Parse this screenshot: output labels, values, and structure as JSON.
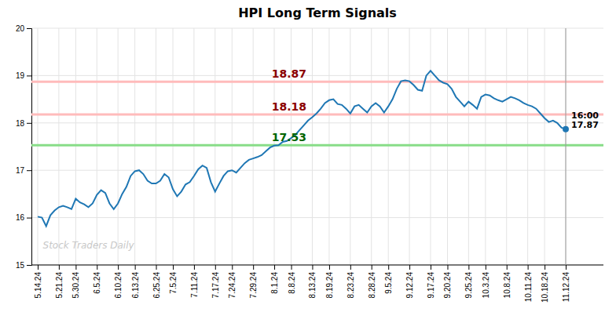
{
  "chart_data": {
    "type": "line",
    "title": "HPI Long Term Signals",
    "categories": [
      "5.14.24",
      null,
      null,
      null,
      null,
      "5.21.24",
      null,
      null,
      null,
      "5.30.24",
      null,
      null,
      null,
      null,
      "6.5.24",
      null,
      null,
      null,
      null,
      "6.10.24",
      null,
      null,
      null,
      "6.13.24",
      null,
      null,
      null,
      null,
      "6.25.24",
      null,
      null,
      null,
      "7.5.24",
      null,
      null,
      null,
      null,
      "7.11.24",
      null,
      null,
      null,
      null,
      "7.17.24",
      null,
      null,
      null,
      "7.24.24",
      null,
      null,
      null,
      null,
      "7.29.24",
      null,
      null,
      null,
      null,
      "8.1.24",
      null,
      null,
      null,
      "8.8.24",
      null,
      null,
      null,
      null,
      "8.13.24",
      null,
      null,
      null,
      "8.19.24",
      null,
      null,
      null,
      null,
      "8.23.24",
      null,
      null,
      null,
      null,
      "8.28.24",
      null,
      null,
      null,
      "9.5.24",
      null,
      null,
      null,
      null,
      "9.12.24",
      null,
      null,
      null,
      null,
      "9.17.24",
      null,
      null,
      null,
      "9.20.24",
      null,
      null,
      null,
      null,
      "9.25.24",
      null,
      null,
      null,
      "10.3.24",
      null,
      null,
      null,
      null,
      "10.8.24",
      null,
      null,
      null,
      null,
      "10.11.24",
      null,
      null,
      null,
      "10.18.24",
      null,
      null,
      null,
      null,
      "11.12.24"
    ],
    "values": [
      16.02,
      16.0,
      15.82,
      16.05,
      16.15,
      16.22,
      16.25,
      16.22,
      16.18,
      16.4,
      16.32,
      16.28,
      16.22,
      16.3,
      16.48,
      16.58,
      16.52,
      16.3,
      16.18,
      16.3,
      16.5,
      16.65,
      16.88,
      16.98,
      17.0,
      16.92,
      16.78,
      16.72,
      16.72,
      16.78,
      16.92,
      16.85,
      16.6,
      16.45,
      16.55,
      16.7,
      16.75,
      16.88,
      17.02,
      17.1,
      17.05,
      16.75,
      16.55,
      16.72,
      16.88,
      16.98,
      17.0,
      16.95,
      17.05,
      17.15,
      17.22,
      17.25,
      17.28,
      17.32,
      17.4,
      17.48,
      17.52,
      17.53,
      17.6,
      17.62,
      17.68,
      17.75,
      17.85,
      17.95,
      18.05,
      18.12,
      18.2,
      18.3,
      18.42,
      18.48,
      18.5,
      18.4,
      18.38,
      18.3,
      18.2,
      18.35,
      18.38,
      18.3,
      18.22,
      18.35,
      18.42,
      18.35,
      18.22,
      18.35,
      18.5,
      18.72,
      18.88,
      18.9,
      18.88,
      18.8,
      18.7,
      18.68,
      19.0,
      19.1,
      19.0,
      18.9,
      18.85,
      18.82,
      18.72,
      18.55,
      18.45,
      18.35,
      18.45,
      18.38,
      18.3,
      18.55,
      18.6,
      18.58,
      18.52,
      18.48,
      18.45,
      18.5,
      18.55,
      18.52,
      18.48,
      18.42,
      18.38,
      18.35,
      18.3,
      18.2,
      18.1,
      18.02,
      18.05,
      18.0,
      17.9,
      17.87
    ],
    "ylim": [
      15,
      20
    ],
    "yticks": [
      15,
      16,
      17,
      18,
      19,
      20
    ],
    "grid": true,
    "reference_lines": [
      {
        "value": 18.87,
        "color": "#ffbbbb",
        "label_color": "#8b0000"
      },
      {
        "value": 18.18,
        "color": "#ffbbbb",
        "label_color": "#8b0000"
      },
      {
        "value": 17.53,
        "color": "#88dd88",
        "label_color": "#006400"
      }
    ],
    "endpoint_label": {
      "time": "16:00",
      "value": 17.87
    },
    "watermark": "Stock Traders Daily"
  }
}
